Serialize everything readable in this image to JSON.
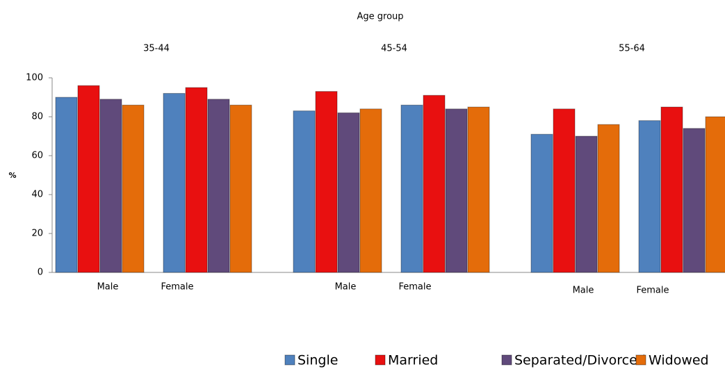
{
  "chart_data": {
    "type": "bar",
    "title": "Age group",
    "groups": [
      "35-44",
      "45-54",
      "55-64"
    ],
    "categories": [
      "Male",
      "Female",
      "Male",
      "Female",
      "Male",
      "Female"
    ],
    "y_label": "%",
    "series": [
      {
        "name": "Single",
        "color": "#4f81bd",
        "values": [
          90,
          92,
          83,
          86,
          71,
          78
        ]
      },
      {
        "name": "Married",
        "color": "#e81010",
        "values": [
          96,
          95,
          93,
          91,
          84,
          85
        ]
      },
      {
        "name": "Separated/Divorced",
        "color": "#604a7b",
        "values": [
          89,
          89,
          82,
          84,
          70,
          74
        ]
      },
      {
        "name": "Widowed",
        "color": "#e46c0a",
        "values": [
          86,
          86,
          84,
          85,
          76,
          80
        ]
      }
    ],
    "ylim": [
      0,
      100
    ],
    "yticks": [
      0,
      20,
      40,
      60,
      80,
      100
    ],
    "grid": false,
    "legend": "bottom"
  }
}
